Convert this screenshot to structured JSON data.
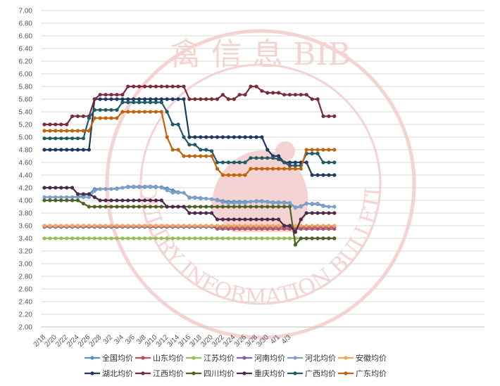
{
  "chart_data": {
    "type": "line",
    "ylim": [
      2.0,
      7.0
    ],
    "y_ticks": [
      "2.00",
      "2.20",
      "2.40",
      "2.60",
      "2.80",
      "3.00",
      "3.20",
      "3.40",
      "3.60",
      "3.80",
      "4.00",
      "4.20",
      "4.40",
      "4.60",
      "4.80",
      "5.00",
      "5.20",
      "5.40",
      "5.60",
      "5.80",
      "6.00",
      "6.20",
      "6.40",
      "6.60",
      "6.80",
      "7.00"
    ],
    "x_ticks": [
      "2/18",
      "2/20",
      "2/22",
      "2/24",
      "2/26",
      "2/28",
      "3/2",
      "3/4",
      "3/6",
      "3/8",
      "3/10",
      "3/12",
      "3/14",
      "3/16",
      "3/18",
      "3/20",
      "3/22",
      "3/24",
      "3/26",
      "3/28",
      "3/30",
      "4/1",
      "4/3"
    ],
    "legend_position": "bottom",
    "grid": true,
    "watermark": {
      "text_cn": "禽 信 息 BIB",
      "text_en": "POULTRY INFORMATION BULLETIN",
      "color": "#e8a0a0"
    },
    "series": [
      {
        "name": "全国均价",
        "color": "#5b8fbf",
        "values": [
          4.05,
          4.05,
          4.05,
          4.05,
          4.05,
          4.05,
          4.06,
          4.07,
          4.1,
          4.18,
          4.18,
          4.18,
          4.18,
          4.19,
          4.2,
          4.21,
          4.21,
          4.21,
          4.21,
          4.21,
          4.21,
          4.21,
          4.19,
          4.16,
          4.13,
          4.12,
          4.04,
          4.04,
          4.03,
          4.03,
          4.02,
          4.01,
          3.99,
          3.98,
          3.98,
          3.98,
          3.98,
          3.98,
          3.99,
          3.99,
          3.98,
          3.97,
          3.97,
          3.97,
          3.96,
          3.89,
          3.91,
          3.95,
          3.94,
          3.94,
          3.91,
          3.9,
          3.9
        ]
      },
      {
        "name": "山东均价",
        "color": "#c0504d",
        "values": [
          3.6,
          3.6,
          3.6,
          3.6,
          3.6,
          3.6,
          3.6,
          3.6,
          3.6,
          3.6,
          3.6,
          3.6,
          3.6,
          3.6,
          3.6,
          3.6,
          3.6,
          3.6,
          3.6,
          3.6,
          3.6,
          3.6,
          3.6,
          3.6,
          3.6,
          3.6,
          3.6,
          3.6,
          3.6,
          3.6,
          3.6,
          3.55,
          3.55,
          3.55,
          3.55,
          3.55,
          3.55,
          3.55,
          3.55,
          3.55,
          3.55,
          3.55,
          3.55,
          3.55,
          3.55,
          3.55,
          3.55,
          3.55,
          3.55,
          3.55,
          3.55,
          3.55,
          3.55
        ]
      },
      {
        "name": "江苏均价",
        "color": "#9bbb59",
        "values": [
          3.4,
          3.4,
          3.4,
          3.4,
          3.4,
          3.4,
          3.4,
          3.4,
          3.4,
          3.4,
          3.4,
          3.4,
          3.4,
          3.4,
          3.4,
          3.4,
          3.4,
          3.4,
          3.4,
          3.4,
          3.4,
          3.4,
          3.4,
          3.4,
          3.4,
          3.4,
          3.4,
          3.4,
          3.4,
          3.4,
          3.4,
          3.4,
          3.4,
          3.4,
          3.4,
          3.4,
          3.4,
          3.4,
          3.4,
          3.4,
          3.4,
          3.4,
          3.4,
          3.4,
          3.4,
          3.4,
          3.4,
          3.4,
          3.4,
          3.4,
          3.4,
          3.4,
          3.4
        ]
      },
      {
        "name": "河南均价",
        "color": "#8064a2",
        "values": [
          3.58,
          3.58,
          3.58,
          3.58,
          3.58,
          3.58,
          3.58,
          3.58,
          3.58,
          3.58,
          3.58,
          3.58,
          3.58,
          3.58,
          3.58,
          3.58,
          3.58,
          3.58,
          3.58,
          3.58,
          3.58,
          3.58,
          3.58,
          3.58,
          3.58,
          3.58,
          3.58,
          3.58,
          3.58,
          3.58,
          3.58,
          3.58,
          3.58,
          3.58,
          3.58,
          3.58,
          3.58,
          3.58,
          3.58,
          3.58,
          3.58,
          3.58,
          3.58,
          3.58,
          3.58,
          3.58,
          3.58,
          3.58,
          3.58,
          3.58,
          3.58,
          3.58,
          3.58
        ]
      },
      {
        "name": "河北均价",
        "color": "#7f9fc7",
        "values": [
          4.05,
          4.05,
          4.05,
          4.05,
          4.05,
          4.05,
          4.05,
          4.05,
          4.05,
          4.15,
          4.18,
          4.18,
          4.18,
          4.18,
          4.2,
          4.22,
          4.22,
          4.22,
          4.22,
          4.22,
          4.22,
          4.2,
          4.16,
          4.12,
          4.12,
          4.12,
          4.05,
          4.05,
          4.04,
          4.03,
          4.02,
          4.0,
          3.97,
          3.96,
          3.96,
          3.96,
          3.96,
          3.98,
          3.98,
          3.98,
          3.97,
          3.96,
          3.96,
          3.96,
          3.95,
          3.88,
          3.9,
          3.95,
          3.95,
          3.95,
          3.92,
          3.9,
          3.9
        ]
      },
      {
        "name": "安徽均价",
        "color": "#f5a65b",
        "values": [
          3.6,
          3.6,
          3.6,
          3.6,
          3.6,
          3.6,
          3.6,
          3.6,
          3.6,
          3.6,
          3.6,
          3.6,
          3.6,
          3.6,
          3.6,
          3.6,
          3.6,
          3.6,
          3.6,
          3.6,
          3.6,
          3.6,
          3.6,
          3.6,
          3.6,
          3.6,
          3.6,
          3.6,
          3.6,
          3.6,
          3.6,
          3.6,
          3.6,
          3.6,
          3.6,
          3.6,
          3.6,
          3.6,
          3.6,
          3.6,
          3.6,
          3.6,
          3.6,
          3.6,
          3.6,
          3.6,
          3.6,
          3.6,
          3.6,
          3.6,
          3.6,
          3.6,
          3.6
        ]
      },
      {
        "name": "湖北均价",
        "color": "#1f3a5f",
        "values": [
          4.8,
          4.8,
          4.8,
          4.8,
          4.8,
          4.8,
          4.8,
          4.8,
          4.8,
          5.6,
          5.6,
          5.6,
          5.6,
          5.6,
          5.6,
          5.6,
          5.6,
          5.6,
          5.6,
          5.6,
          5.6,
          5.6,
          5.6,
          5.6,
          5.6,
          5.6,
          5.0,
          5.0,
          5.0,
          5.0,
          5.0,
          5.0,
          5.0,
          5.0,
          5.0,
          5.0,
          5.0,
          5.0,
          5.0,
          5.0,
          4.8,
          4.7,
          4.7,
          4.6,
          4.6,
          4.6,
          4.6,
          4.6,
          4.4,
          4.4,
          4.4,
          4.4,
          4.4
        ]
      },
      {
        "name": "江西均价",
        "color": "#7b2c3a",
        "values": [
          5.2,
          5.2,
          5.2,
          5.2,
          5.2,
          5.33,
          5.33,
          5.33,
          5.33,
          5.6,
          5.67,
          5.67,
          5.67,
          5.67,
          5.67,
          5.8,
          5.8,
          5.8,
          5.8,
          5.8,
          5.8,
          5.8,
          5.8,
          5.8,
          5.8,
          5.8,
          5.6,
          5.6,
          5.6,
          5.6,
          5.6,
          5.6,
          5.67,
          5.6,
          5.6,
          5.67,
          5.67,
          5.8,
          5.8,
          5.73,
          5.7,
          5.7,
          5.7,
          5.67,
          5.67,
          5.67,
          5.67,
          5.67,
          5.6,
          5.6,
          5.33,
          5.33,
          5.33
        ]
      },
      {
        "name": "四川均价",
        "color": "#4f6228",
        "values": [
          4.0,
          4.0,
          4.0,
          4.0,
          4.0,
          4.0,
          4.0,
          3.95,
          3.9,
          3.9,
          3.9,
          3.9,
          3.9,
          3.9,
          3.9,
          3.9,
          3.9,
          3.9,
          3.9,
          3.9,
          3.9,
          3.9,
          3.9,
          3.9,
          3.9,
          3.9,
          3.9,
          3.9,
          3.9,
          3.9,
          3.9,
          3.9,
          3.9,
          3.9,
          3.9,
          3.9,
          3.9,
          3.9,
          3.9,
          3.9,
          3.9,
          3.9,
          3.9,
          3.9,
          3.9,
          3.3,
          3.4,
          3.4,
          3.4,
          3.4,
          3.4,
          3.4,
          3.4
        ]
      },
      {
        "name": "重庆均价",
        "color": "#4e2a4a",
        "values": [
          4.2,
          4.2,
          4.2,
          4.2,
          4.2,
          4.2,
          4.1,
          4.1,
          4.1,
          4.05,
          4.0,
          4.0,
          4.0,
          4.0,
          4.0,
          4.0,
          4.0,
          4.0,
          4.0,
          4.0,
          4.0,
          4.0,
          3.9,
          3.9,
          3.9,
          3.9,
          3.8,
          3.8,
          3.8,
          3.8,
          3.8,
          3.7,
          3.7,
          3.7,
          3.7,
          3.7,
          3.7,
          3.7,
          3.7,
          3.7,
          3.7,
          3.7,
          3.7,
          3.6,
          3.6,
          3.5,
          3.7,
          3.8,
          3.8,
          3.8,
          3.8,
          3.8,
          3.8
        ]
      },
      {
        "name": "广西均价",
        "color": "#215967",
        "values": [
          4.98,
          4.98,
          4.98,
          4.98,
          4.98,
          4.98,
          4.98,
          4.98,
          5.3,
          5.43,
          5.43,
          5.43,
          5.43,
          5.43,
          5.55,
          5.55,
          5.55,
          5.55,
          5.55,
          5.55,
          5.55,
          5.55,
          5.4,
          5.2,
          5.2,
          5.0,
          4.88,
          4.88,
          4.8,
          4.8,
          4.78,
          4.6,
          4.6,
          4.6,
          4.6,
          4.6,
          4.6,
          4.67,
          4.67,
          4.67,
          4.67,
          4.67,
          4.65,
          4.6,
          4.55,
          4.55,
          4.55,
          4.74,
          4.74,
          4.74,
          4.6,
          4.6,
          4.6
        ]
      },
      {
        "name": "广东均价",
        "color": "#c0650b",
        "values": [
          5.1,
          5.1,
          5.1,
          5.1,
          5.1,
          5.1,
          5.1,
          5.1,
          5.1,
          5.3,
          5.3,
          5.3,
          5.3,
          5.3,
          5.4,
          5.4,
          5.4,
          5.4,
          5.4,
          5.4,
          5.4,
          5.4,
          5.0,
          4.8,
          4.8,
          4.7,
          4.7,
          4.7,
          4.7,
          4.7,
          4.7,
          4.5,
          4.4,
          4.4,
          4.4,
          4.4,
          4.4,
          4.5,
          4.5,
          4.5,
          4.5,
          4.5,
          4.5,
          4.5,
          4.5,
          4.5,
          4.5,
          4.8,
          4.8,
          4.8,
          4.8,
          4.8,
          4.8
        ]
      }
    ]
  }
}
